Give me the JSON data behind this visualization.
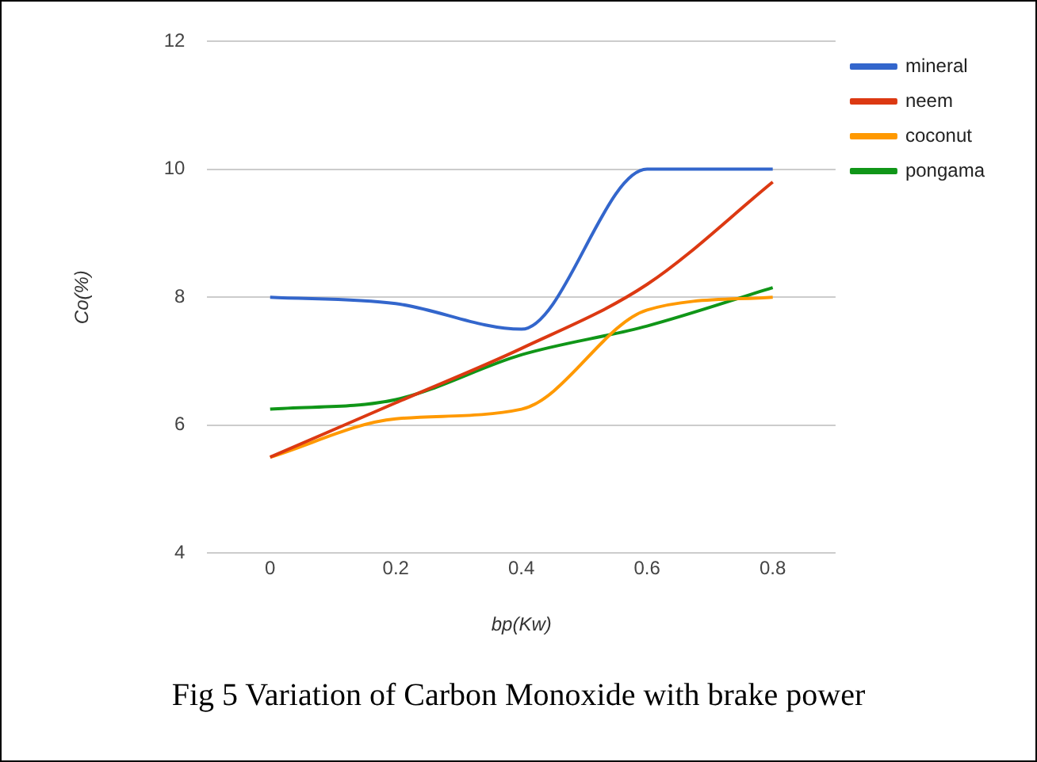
{
  "chart_data": {
    "type": "line",
    "title": "Fig 5 Variation of Carbon Monoxide with brake power",
    "xlabel": "bp(Kw)",
    "ylabel": "Co(%)",
    "x": [
      0,
      0.2,
      0.4,
      0.6,
      0.8
    ],
    "series": [
      {
        "name": "mineral",
        "color": "#3366cc",
        "values": [
          8.0,
          7.9,
          7.5,
          10.0,
          10.0
        ]
      },
      {
        "name": "neem",
        "color": "#dc3912",
        "values": [
          5.5,
          6.35,
          7.2,
          8.2,
          9.8
        ]
      },
      {
        "name": "coconut",
        "color": "#ff9900",
        "values": [
          5.5,
          6.1,
          6.25,
          7.8,
          8.0
        ]
      },
      {
        "name": "pongama",
        "color": "#109618",
        "values": [
          6.25,
          6.4,
          7.1,
          7.55,
          8.15
        ]
      }
    ],
    "xlim": [
      -0.1,
      0.9
    ],
    "xticks": [
      0,
      0.2,
      0.4,
      0.6,
      0.8
    ],
    "ylim": [
      4,
      12
    ],
    "yticks": [
      4,
      6,
      8,
      10,
      12
    ],
    "grid": "y",
    "legend": "top right",
    "marker": "none",
    "line_style": "solid"
  }
}
